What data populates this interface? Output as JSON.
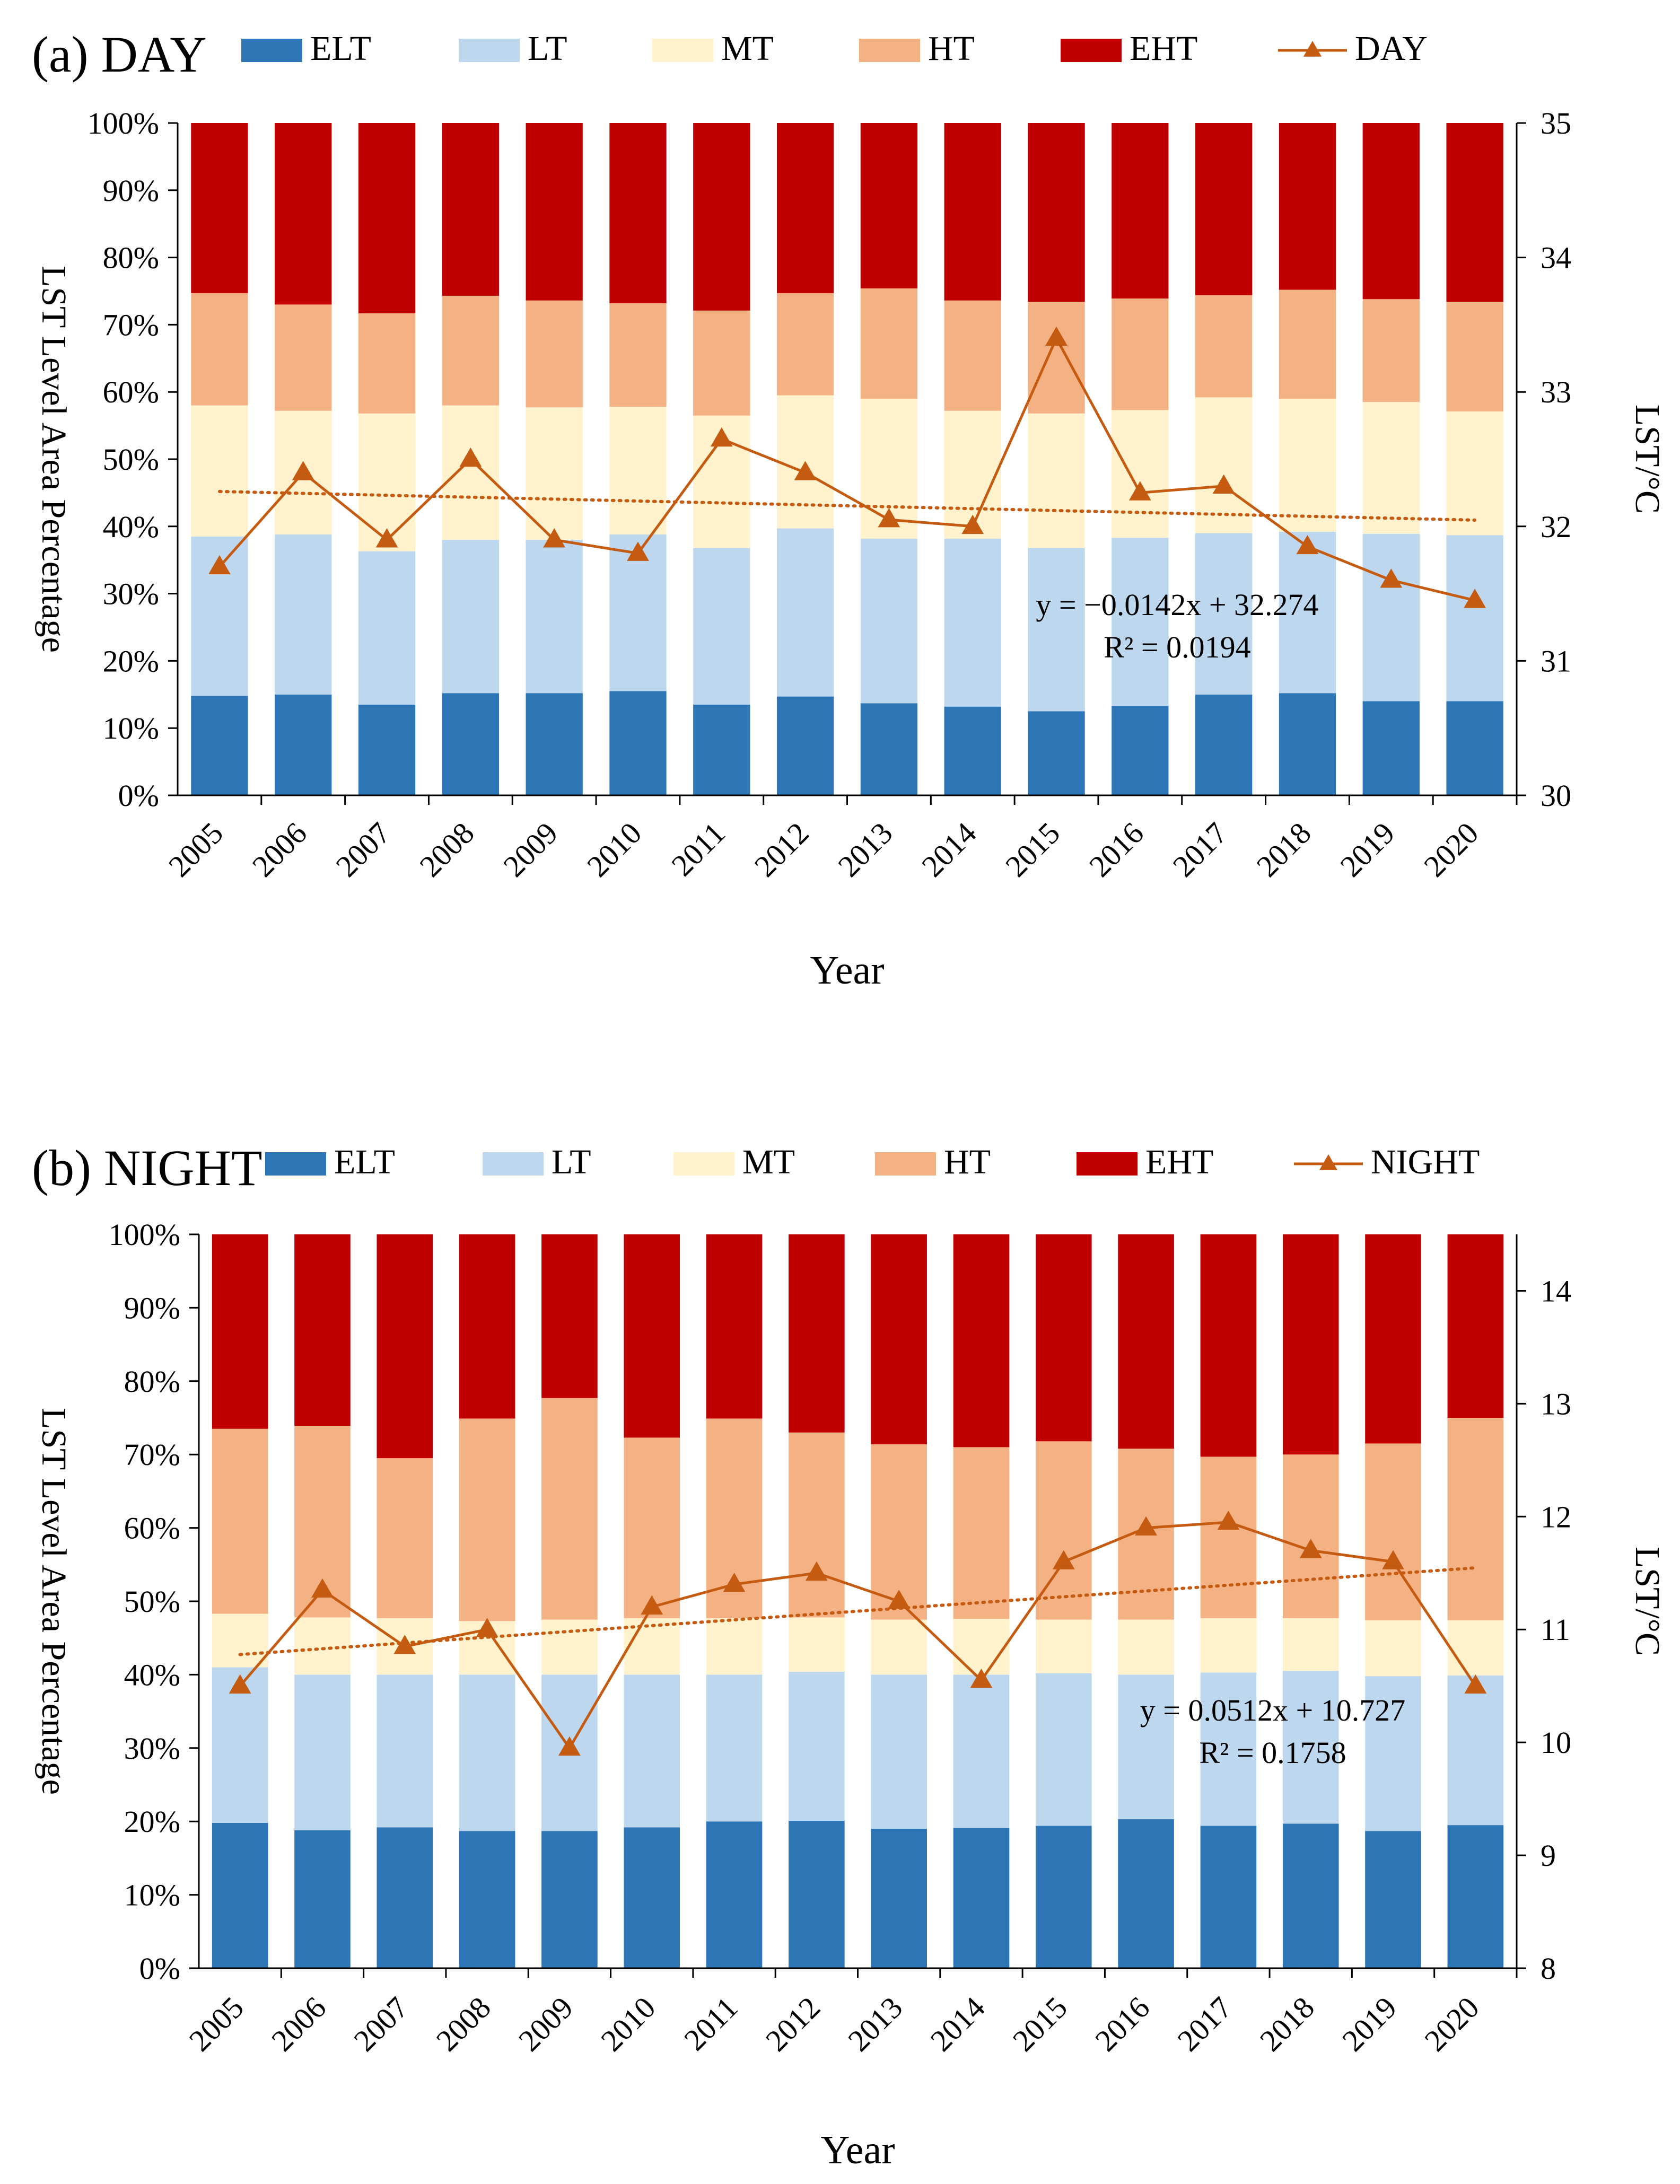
{
  "colors": {
    "ELT": "#2E75B6",
    "LT": "#BDD7EE",
    "MT": "#FFF2CC",
    "HT": "#F4B183",
    "EHT": "#C00000",
    "line": "#C55A11"
  },
  "chart_data": [
    {
      "type": "bar",
      "stacked": true,
      "panel_title": "(a) DAY",
      "xlabel": "Year",
      "ylabel": "LST Level Area Percentage",
      "y2label": "LST/°C",
      "categories": [
        "2005",
        "2006",
        "2007",
        "2008",
        "2009",
        "2010",
        "2011",
        "2012",
        "2013",
        "2014",
        "2015",
        "2016",
        "2017",
        "2018",
        "2019",
        "2020"
      ],
      "ylim": [
        0,
        100
      ],
      "yticks": [
        "0%",
        "10%",
        "20%",
        "30%",
        "40%",
        "50%",
        "60%",
        "70%",
        "80%",
        "90%",
        "100%"
      ],
      "y2lim": [
        30,
        35
      ],
      "y2ticks": [
        "30",
        "31",
        "32",
        "33",
        "34",
        "35"
      ],
      "series": [
        {
          "name": "ELT",
          "values": [
            14.8,
            15,
            13.5,
            15.2,
            15.2,
            15.5,
            13.5,
            14.7,
            13.7,
            13.2,
            12.5,
            13.3,
            15,
            15.2,
            14,
            14
          ]
        },
        {
          "name": "LT",
          "values": [
            23.7,
            23.8,
            22.8,
            22.8,
            22.8,
            23.3,
            23.3,
            25,
            24.5,
            25,
            24.3,
            25,
            24,
            24,
            24.9,
            24.7
          ]
        },
        {
          "name": "MT",
          "values": [
            19.5,
            18.4,
            20.5,
            20,
            19.7,
            19,
            19.7,
            19.8,
            20.8,
            19,
            20,
            19,
            20.2,
            19.8,
            19.6,
            18.4
          ]
        },
        {
          "name": "HT",
          "values": [
            16.7,
            15.8,
            14.9,
            16.3,
            15.9,
            15.4,
            15.6,
            15.2,
            16.4,
            16.4,
            16.6,
            16.6,
            15.2,
            16.2,
            15.3,
            16.3
          ]
        },
        {
          "name": "EHT",
          "values": [
            25.3,
            27,
            28.3,
            25.7,
            26.4,
            26.8,
            27.9,
            25.3,
            24.6,
            26.4,
            26.6,
            26.1,
            25.6,
            24.8,
            26.2,
            26.6
          ]
        }
      ],
      "line": {
        "name": "DAY",
        "values": [
          31.7,
          32.4,
          31.9,
          32.5,
          31.9,
          31.8,
          32.65,
          32.4,
          32.05,
          32,
          33.4,
          32.25,
          32.3,
          31.85,
          31.6,
          31.45
        ]
      },
      "trend": {
        "slope": -0.0142,
        "intercept": 32.274,
        "equation": "y = −0.0142x + 32.274",
        "r2": "R² = 0.0194"
      }
    },
    {
      "type": "bar",
      "stacked": true,
      "panel_title": "(b) NIGHT",
      "xlabel": "Year",
      "ylabel": "LST Level Area Percentage",
      "y2label": "LST/°C",
      "categories": [
        "2005",
        "2006",
        "2007",
        "2008",
        "2009",
        "2010",
        "2011",
        "2012",
        "2013",
        "2014",
        "2015",
        "2016",
        "2017",
        "2018",
        "2019",
        "2020"
      ],
      "ylim": [
        0,
        100
      ],
      "yticks": [
        "0%",
        "10%",
        "20%",
        "30%",
        "40%",
        "50%",
        "60%",
        "70%",
        "80%",
        "90%",
        "100%"
      ],
      "y2lim": [
        8,
        14.5
      ],
      "y2ticks": [
        "8",
        "9",
        "10",
        "11",
        "12",
        "13",
        "14"
      ],
      "series": [
        {
          "name": "ELT",
          "values": [
            19.8,
            18.8,
            19.2,
            18.7,
            18.7,
            19.2,
            20,
            20.1,
            19,
            19.1,
            19.4,
            20.3,
            19.4,
            19.7,
            18.7,
            19.5
          ]
        },
        {
          "name": "LT",
          "values": [
            21.2,
            21.2,
            20.8,
            21.3,
            21.3,
            20.8,
            20,
            20.3,
            21,
            20.9,
            20.8,
            19.7,
            20.9,
            20.8,
            21.1,
            20.4
          ]
        },
        {
          "name": "MT",
          "values": [
            7.3,
            7.8,
            7.7,
            7.3,
            7.5,
            7.7,
            7.7,
            7.4,
            7.5,
            7.6,
            7.3,
            7.5,
            7.4,
            7.2,
            7.6,
            7.5
          ]
        },
        {
          "name": "HT",
          "values": [
            25.2,
            26.1,
            21.8,
            27.6,
            30.2,
            24.6,
            27.2,
            25.2,
            23.9,
            23.4,
            24.3,
            23.3,
            22,
            22.3,
            24.1,
            27.6
          ]
        },
        {
          "name": "EHT",
          "values": [
            26.5,
            26.1,
            30.5,
            25.1,
            22.3,
            27.7,
            25.1,
            27,
            28.6,
            29,
            28.2,
            29.2,
            30.3,
            30,
            28.5,
            25
          ]
        }
      ],
      "line": {
        "name": "NIGHT",
        "values": [
          10.5,
          11.35,
          10.85,
          11,
          9.95,
          11.2,
          11.4,
          11.5,
          11.25,
          10.55,
          11.6,
          11.9,
          11.95,
          11.7,
          11.6,
          10.5
        ]
      },
      "trend": {
        "slope": 0.0512,
        "intercept": 10.727,
        "equation": "y = 0.0512x + 10.727",
        "r2": "R² = 0.1758"
      }
    }
  ]
}
